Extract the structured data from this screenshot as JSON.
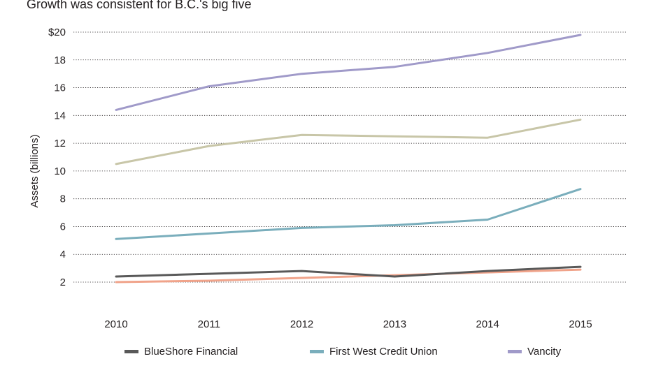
{
  "title": "Growth was consistent for B.C.'s big five",
  "chart_data": {
    "type": "line",
    "title": "Growth was consistent for B.C.'s big five",
    "xlabel": "",
    "ylabel": "Assets (billions)",
    "x": [
      2010,
      2011,
      2012,
      2013,
      2014,
      2015
    ],
    "x_tick_labels": [
      "2010",
      "2011",
      "2012",
      "2013",
      "2014",
      "2015"
    ],
    "y_tick_labels": [
      "2",
      "4",
      "6",
      "8",
      "10",
      "12",
      "14",
      "16",
      "18",
      "$20"
    ],
    "y_ticks": [
      2,
      4,
      6,
      8,
      10,
      12,
      14,
      16,
      18,
      20
    ],
    "ylim": [
      0,
      20
    ],
    "grid": true,
    "legend_position": "bottom",
    "series": [
      {
        "name": "Vancity",
        "color": "#a09ac9",
        "values": [
          14.4,
          16.1,
          17.0,
          17.5,
          18.5,
          19.8
        ]
      },
      {
        "name": "",
        "color": "#c8c6a8",
        "values": [
          10.5,
          11.8,
          12.6,
          12.5,
          12.4,
          13.7
        ]
      },
      {
        "name": "First West Credit Union",
        "color": "#7aaebc",
        "values": [
          5.1,
          5.5,
          5.9,
          6.1,
          6.5,
          8.7
        ]
      },
      {
        "name": "BlueShore Financial",
        "color": "#595959",
        "values": [
          2.4,
          2.6,
          2.8,
          2.4,
          2.8,
          3.1
        ]
      },
      {
        "name": "",
        "color": "#f0a38a",
        "values": [
          2.0,
          2.1,
          2.3,
          2.5,
          2.7,
          2.9
        ]
      }
    ]
  },
  "legend": [
    {
      "label": "BlueShore Financial",
      "color": "#595959"
    },
    {
      "label": "First West Credit Union",
      "color": "#7aaebc"
    },
    {
      "label": "Vancity",
      "color": "#a09ac9"
    }
  ]
}
